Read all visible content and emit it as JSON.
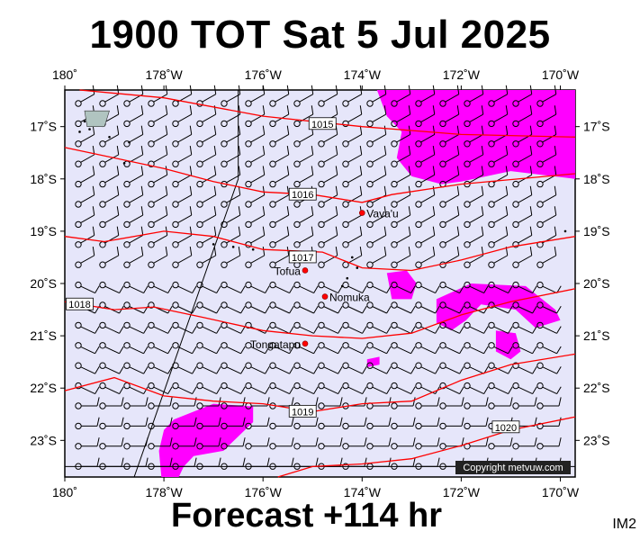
{
  "title": "1900 TOT Sat 5 Jul 2025",
  "subtitle": "Forecast +114 hr",
  "corner_label": "IM2",
  "copyright": "Copyright metvuw.com",
  "colors": {
    "ocean": "#e6e6fa",
    "isobar": "#ff0000",
    "highlight": "#ff00ff"
  },
  "map": {
    "lon_range": [
      180,
      190.3
    ],
    "lat_range": [
      -16.3,
      -23.7
    ],
    "lon_ticks": [
      {
        "value": 180,
        "label": "180˚"
      },
      {
        "value": 182,
        "label": "178˚W"
      },
      {
        "value": 184,
        "label": "176˚W"
      },
      {
        "value": 186,
        "label": "174˚W"
      },
      {
        "value": 188,
        "label": "172˚W"
      },
      {
        "value": 190,
        "label": "170˚W"
      }
    ],
    "lat_ticks": [
      {
        "value": -17,
        "label": "17˚S"
      },
      {
        "value": -18,
        "label": "18˚S"
      },
      {
        "value": -19,
        "label": "19˚S"
      },
      {
        "value": -20,
        "label": "20˚S"
      },
      {
        "value": -21,
        "label": "21˚S"
      },
      {
        "value": -22,
        "label": "22˚S"
      },
      {
        "value": -23,
        "label": "23˚S"
      }
    ],
    "places": [
      {
        "name": "Vava'u",
        "lon": 186.0,
        "lat": -18.65
      },
      {
        "name": "Tofua",
        "lon": 184.85,
        "lat": -19.75
      },
      {
        "name": "Nomuka",
        "lon": 185.25,
        "lat": -20.25
      },
      {
        "name": "Tongatapu",
        "lon": 184.85,
        "lat": -21.15
      }
    ],
    "isobars": [
      {
        "label": "1015",
        "points": [
          [
            180.3,
            -16.3
          ],
          [
            182,
            -16.45
          ],
          [
            184,
            -16.8
          ],
          [
            186,
            -17.0
          ],
          [
            188,
            -17.15
          ],
          [
            190.3,
            -17.2
          ]
        ],
        "label_at": [
          185.2,
          -16.95
        ]
      },
      {
        "label": "1016",
        "points": [
          [
            180,
            -17.4
          ],
          [
            181,
            -17.6
          ],
          [
            182,
            -17.8
          ],
          [
            183,
            -18.05
          ],
          [
            184,
            -18.25
          ],
          [
            185,
            -18.3
          ],
          [
            186,
            -18.45
          ],
          [
            186.6,
            -18.3
          ],
          [
            188,
            -18.1
          ],
          [
            190.3,
            -17.9
          ]
        ],
        "label_at": [
          184.8,
          -18.3
        ]
      },
      {
        "label": "1017",
        "points": [
          [
            180,
            -19.1
          ],
          [
            180.8,
            -19.2
          ],
          [
            182,
            -19.0
          ],
          [
            183,
            -19.1
          ],
          [
            184,
            -19.35
          ],
          [
            185.2,
            -19.4
          ],
          [
            186,
            -19.7
          ],
          [
            187,
            -19.75
          ],
          [
            188,
            -19.55
          ],
          [
            189,
            -19.3
          ],
          [
            190.3,
            -19.1
          ]
        ],
        "label_at": [
          184.8,
          -19.5
        ]
      },
      {
        "label": "1018",
        "points": [
          [
            180,
            -20.35
          ],
          [
            181,
            -20.5
          ],
          [
            181.8,
            -20.45
          ],
          [
            182.8,
            -20.65
          ],
          [
            184,
            -20.9
          ],
          [
            185,
            -21.0
          ],
          [
            186,
            -21.05
          ],
          [
            187,
            -20.95
          ],
          [
            188,
            -20.6
          ],
          [
            189,
            -20.35
          ],
          [
            190.3,
            -20.1
          ]
        ],
        "label_at": [
          180.3,
          -20.4
        ]
      },
      {
        "label": "1019",
        "points": [
          [
            180,
            -22.05
          ],
          [
            181,
            -21.8
          ],
          [
            182,
            -22.15
          ],
          [
            183,
            -22.25
          ],
          [
            184,
            -22.3
          ],
          [
            185,
            -22.45
          ],
          [
            186,
            -22.3
          ],
          [
            187,
            -22.25
          ],
          [
            188,
            -21.85
          ],
          [
            189,
            -21.55
          ],
          [
            190.3,
            -21.35
          ]
        ],
        "label_at": [
          184.8,
          -22.45
        ]
      },
      {
        "label": "1020",
        "points": [
          [
            184.3,
            -23.7
          ],
          [
            185,
            -23.5
          ],
          [
            186,
            -23.45
          ],
          [
            187,
            -23.35
          ],
          [
            188,
            -23.1
          ],
          [
            189,
            -22.8
          ],
          [
            190.3,
            -22.55
          ]
        ],
        "label_at": [
          188.9,
          -22.75
        ]
      }
    ],
    "highlight_regions": [
      {
        "name": "northeast",
        "points": [
          [
            186.3,
            -16.3
          ],
          [
            190.3,
            -16.3
          ],
          [
            190.3,
            -18.0
          ],
          [
            189,
            -17.85
          ],
          [
            188,
            -18.05
          ],
          [
            187.6,
            -18.1
          ],
          [
            187,
            -17.95
          ],
          [
            186.7,
            -17.6
          ],
          [
            186.8,
            -17.1
          ],
          [
            186.5,
            -16.8
          ]
        ]
      },
      {
        "name": "east-loop",
        "points": [
          [
            187.5,
            -20.3
          ],
          [
            188.2,
            -20.0
          ],
          [
            189.3,
            -20.05
          ],
          [
            189.9,
            -20.5
          ],
          [
            190.0,
            -20.7
          ],
          [
            189.5,
            -20.85
          ],
          [
            189.1,
            -20.5
          ],
          [
            188.4,
            -20.4
          ],
          [
            188.1,
            -20.7
          ],
          [
            187.8,
            -20.9
          ],
          [
            187.5,
            -20.75
          ]
        ]
      },
      {
        "name": "east-blob-small",
        "points": [
          [
            188.7,
            -20.9
          ],
          [
            189.1,
            -20.95
          ],
          [
            189.2,
            -21.3
          ],
          [
            189,
            -21.45
          ],
          [
            188.7,
            -21.3
          ]
        ]
      },
      {
        "name": "west-blob",
        "points": [
          [
            186.5,
            -19.8
          ],
          [
            186.9,
            -19.75
          ],
          [
            187.1,
            -20.0
          ],
          [
            187.0,
            -20.3
          ],
          [
            186.6,
            -20.3
          ]
        ]
      },
      {
        "name": "southwest",
        "points": [
          [
            182.2,
            -22.6
          ],
          [
            183,
            -22.3
          ],
          [
            183.8,
            -22.35
          ],
          [
            183.8,
            -22.65
          ],
          [
            183.2,
            -23.2
          ],
          [
            182.6,
            -23.3
          ],
          [
            182.4,
            -23.5
          ],
          [
            182.3,
            -23.7
          ],
          [
            181.95,
            -23.7
          ],
          [
            181.9,
            -23.2
          ],
          [
            182,
            -22.8
          ]
        ]
      },
      {
        "name": "tiny",
        "points": [
          [
            186.1,
            -21.45
          ],
          [
            186.35,
            -21.4
          ],
          [
            186.35,
            -21.55
          ],
          [
            186.1,
            -21.6
          ]
        ]
      }
    ],
    "dateline": [
      [
        183.5,
        -18.0
      ],
      [
        181.4,
        -23.7
      ]
    ]
  }
}
